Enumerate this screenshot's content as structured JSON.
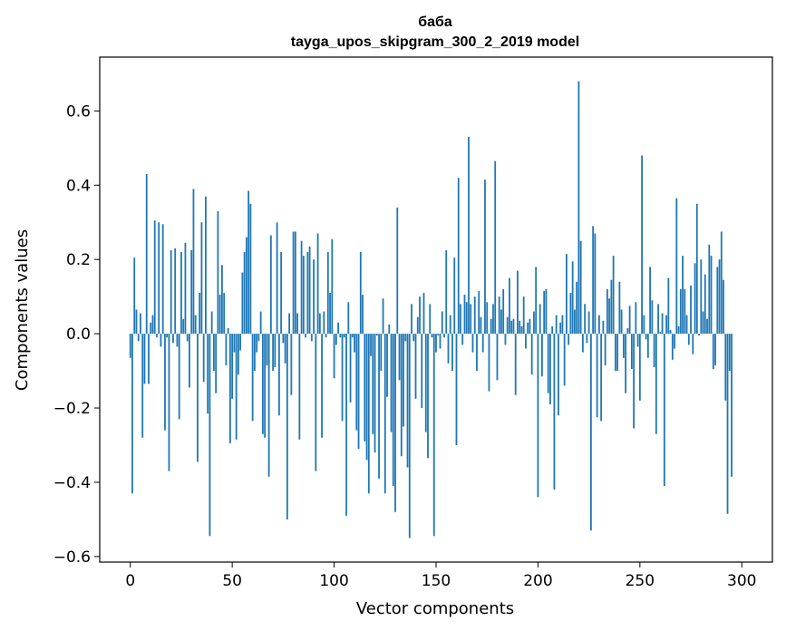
{
  "chart_data": {
    "type": "bar",
    "title": "баба",
    "subtitle": "tayga_upos_skipgram_300_2_2019 model",
    "xlabel": "Vector components",
    "ylabel": "Components values",
    "xlim": [
      -15,
      315
    ],
    "ylim": [
      -0.615,
      0.745
    ],
    "xticks": [
      0,
      50,
      100,
      150,
      200,
      250,
      300
    ],
    "xtick_labels": [
      "0",
      "50",
      "100",
      "150",
      "200",
      "250",
      "300"
    ],
    "yticks": [
      -0.6,
      -0.4,
      -0.2,
      0.0,
      0.2,
      0.4,
      0.6
    ],
    "ytick_labels": [
      "−0.6",
      "−0.4",
      "−0.2",
      "0.0",
      "0.2",
      "0.4",
      "0.6"
    ],
    "grid": false,
    "legend": "none",
    "bar_color": "#1f77b4",
    "bar_width": 0.8,
    "x_start": 0,
    "values": [
      -0.065,
      -0.43,
      0.205,
      0.065,
      -0.02,
      0.055,
      -0.28,
      -0.135,
      0.43,
      -0.135,
      0.03,
      0.05,
      0.305,
      -0.01,
      0.3,
      -0.035,
      0.295,
      -0.26,
      -0.01,
      -0.37,
      0.225,
      -0.025,
      0.23,
      -0.035,
      -0.23,
      0.22,
      0.04,
      0.245,
      -0.02,
      -0.145,
      0.225,
      0.39,
      0.05,
      -0.345,
      0.11,
      0.3,
      -0.13,
      0.37,
      -0.215,
      -0.545,
      0.06,
      -0.1,
      -0.16,
      0.33,
      0.105,
      0.185,
      0.11,
      -0.085,
      0.015,
      -0.295,
      -0.175,
      -0.05,
      -0.285,
      -0.11,
      -0.045,
      0.165,
      0.22,
      0.26,
      0.385,
      0.35,
      -0.235,
      -0.1,
      -0.05,
      -0.02,
      0.06,
      -0.27,
      -0.28,
      -0.085,
      -0.385,
      0.265,
      -0.1,
      -0.09,
      0.3,
      -0.22,
      0.22,
      -0.025,
      -0.08,
      -0.5,
      0.055,
      -0.165,
      0.275,
      0.275,
      0.055,
      -0.285,
      0.25,
      0.21,
      -0.01,
      0.22,
      0.235,
      -0.02,
      0.2,
      -0.37,
      0.27,
      0.055,
      -0.28,
      0.06,
      -0.01,
      0.22,
      0.11,
      0.255,
      -0.12,
      -0.03,
      0.03,
      -0.01,
      -0.235,
      -0.01,
      -0.49,
      0.085,
      -0.185,
      -0.01,
      -0.05,
      -0.26,
      -0.31,
      0.22,
      0.105,
      -0.29,
      -0.34,
      -0.43,
      -0.06,
      -0.27,
      -0.32,
      -0.005,
      -0.39,
      -0.1,
      0.095,
      -0.43,
      -0.17,
      0.025,
      -0.265,
      -0.41,
      -0.48,
      0.34,
      -0.125,
      -0.33,
      -0.25,
      -0.02,
      -0.36,
      -0.55,
      0.08,
      -0.02,
      -0.175,
      0.045,
      0.1,
      -0.2,
      0.11,
      -0.265,
      -0.335,
      0.08,
      -0.01,
      -0.545,
      -0.05,
      -0.005,
      -0.04,
      0.06,
      -0.01,
      0.225,
      -0.08,
      0.05,
      -0.1,
      0.205,
      -0.3,
      0.42,
      0.08,
      -0.03,
      0.105,
      0.085,
      0.53,
      0.08,
      -0.05,
      0.1,
      -0.1,
      0.115,
      0.045,
      -0.05,
      0.415,
      0.085,
      -0.155,
      0.04,
      0.08,
      0.465,
      -0.125,
      0.1,
      0.065,
      0.12,
      -0.03,
      0.045,
      0.15,
      0.035,
      0.04,
      -0.165,
      0.17,
      0.035,
      0.02,
      0.1,
      -0.04,
      0.03,
      0.04,
      -0.11,
      0.06,
      0.18,
      -0.44,
      0.08,
      -0.115,
      0.115,
      0.12,
      -0.16,
      -0.19,
      0.02,
      -0.42,
      0.05,
      -0.22,
      0.03,
      0.05,
      -0.14,
      0.215,
      -0.03,
      0.11,
      0.195,
      0.065,
      0.14,
      0.68,
      0.25,
      -0.05,
      0.08,
      -0.025,
      0.06,
      -0.53,
      0.29,
      0.27,
      -0.225,
      0.05,
      -0.235,
      0.035,
      -0.085,
      0.12,
      0.095,
      0.145,
      0.21,
      -0.1,
      -0.1,
      0.14,
      0.065,
      -0.065,
      -0.16,
      0.015,
      0.075,
      -0.095,
      -0.255,
      0.085,
      -0.035,
      -0.18,
      0.48,
      0.05,
      -0.015,
      -0.065,
      0.18,
      0.09,
      -0.09,
      -0.27,
      0.08,
      0.005,
      0.055,
      -0.41,
      0.05,
      0.15,
      0.01,
      -0.07,
      -0.04,
      0.365,
      0.02,
      0.12,
      0.21,
      0.12,
      0.05,
      -0.03,
      0.13,
      -0.055,
      0.19,
      0.35,
      -0.005,
      0.2,
      0.06,
      0.16,
      0.04,
      0.24,
      0.21,
      -0.095,
      -0.085,
      0.18,
      0.2,
      0.275,
      0.145,
      -0.18,
      -0.485,
      -0.1,
      -0.385
    ]
  }
}
